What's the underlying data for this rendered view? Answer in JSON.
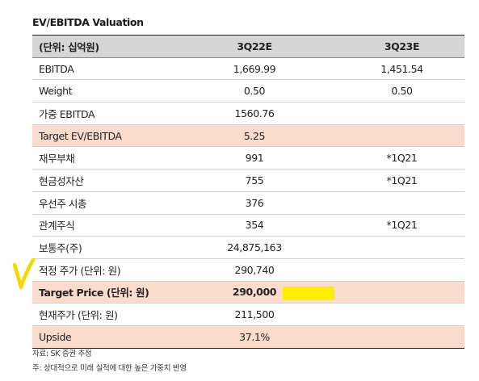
{
  "title": "EV/EBITDA Valuation",
  "header": {
    "label": "(단위: 십억원)",
    "col1": "3Q22E",
    "col2": "3Q23E"
  },
  "rows": [
    {
      "label": "EBITDA",
      "v1": "1,669.99",
      "v2": "1,451.54"
    },
    {
      "label": "Weight",
      "v1": "0.50",
      "v2": "0.50"
    },
    {
      "label": "가중 EBITDA",
      "v1": "1560.76",
      "v2": ""
    },
    {
      "label": "Target EV/EBITDA",
      "v1": "5.25",
      "v2": ""
    },
    {
      "label": "재무부채",
      "v1": "991",
      "v2": "*1Q21"
    },
    {
      "label": "현금성자산",
      "v1": "755",
      "v2": "*1Q21"
    },
    {
      "label": "우선주 시총",
      "v1": "376",
      "v2": ""
    },
    {
      "label": "관계주식",
      "v1": "354",
      "v2": "*1Q21"
    },
    {
      "label": "보통주(주)",
      "v1": "24,875,163",
      "v2": ""
    },
    {
      "label": "적정 주가 (단위: 원)",
      "v1": "290,740",
      "v2": ""
    },
    {
      "label": "Target Price (단위: 원)",
      "v1": "290,000",
      "v2": ""
    },
    {
      "label": "현재주가 (단위: 원)",
      "v1": "211,500",
      "v2": ""
    },
    {
      "label": "Upside",
      "v1": "37.1%",
      "v2": ""
    }
  ],
  "notes": [
    "자료: SK 증권 추정",
    "주: 상대적으로 미래 실적에 대한 높은 가중치 반영"
  ],
  "colors": {
    "highlight_row": "#fadbcc",
    "header_row": "#d6d6d6",
    "marker": "#ffee00"
  }
}
